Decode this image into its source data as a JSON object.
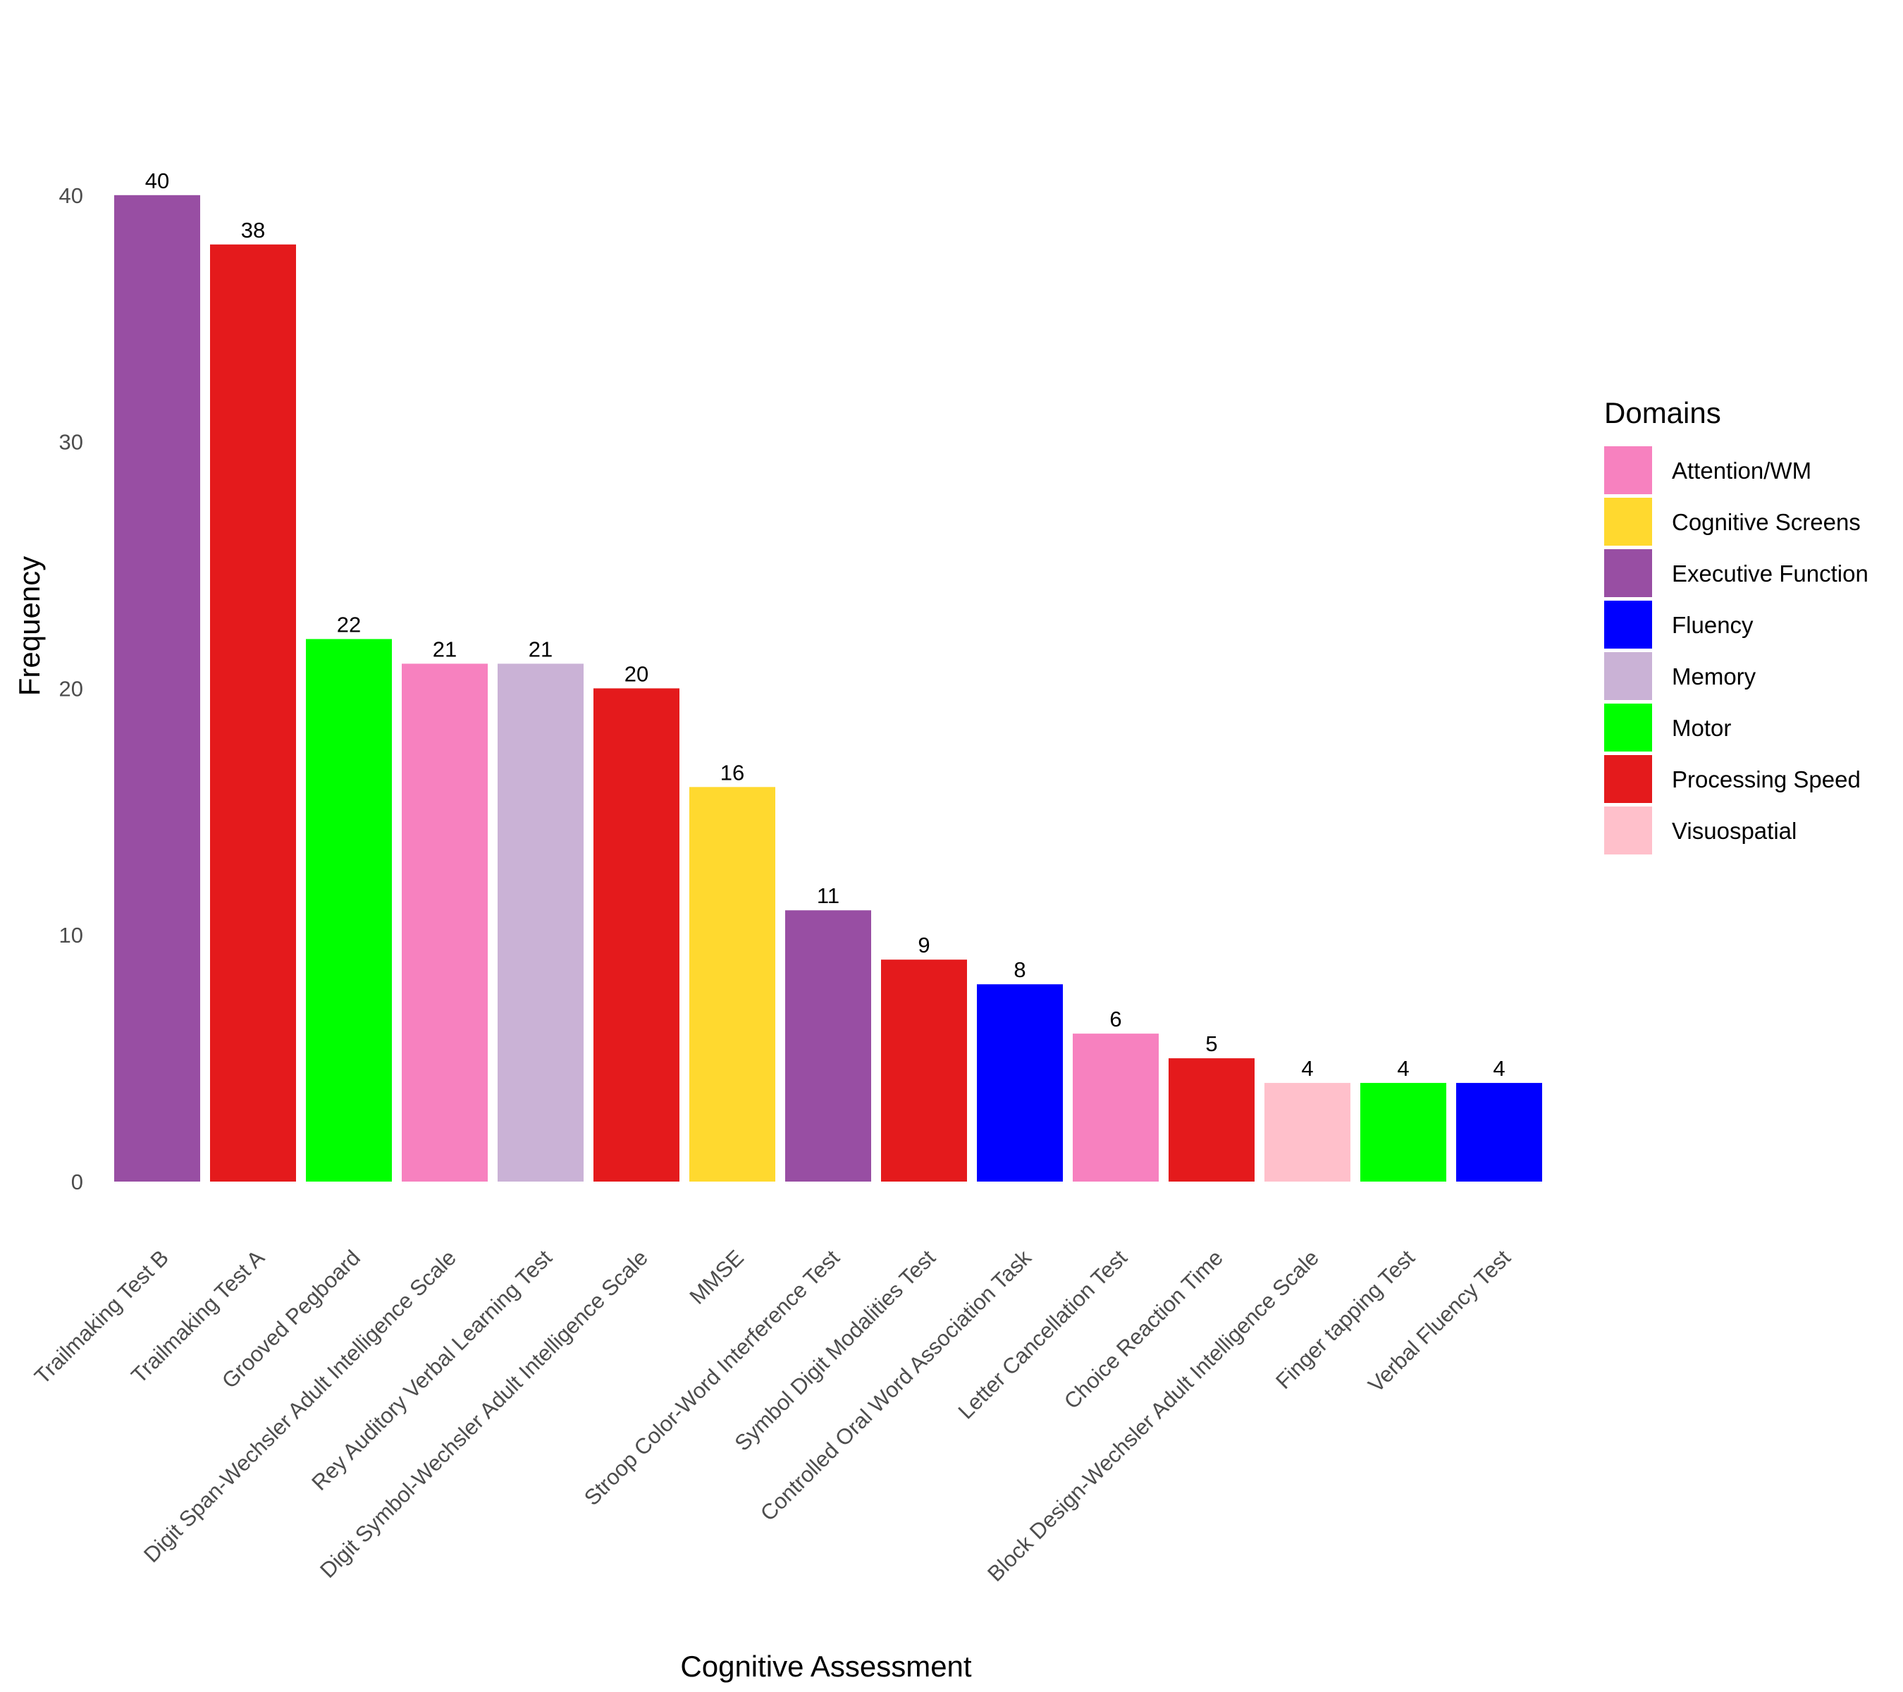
{
  "chart_data": {
    "type": "bar",
    "title": "",
    "xlabel": "Cognitive Assessment",
    "ylabel": "Frequency",
    "ylim": [
      0,
      42
    ],
    "yticks": [
      0,
      10,
      20,
      30,
      40
    ],
    "grid": false,
    "legend_position": "right",
    "legend_title": "Domains",
    "categories": [
      "Trailmaking Test B",
      "Trailmaking Test A",
      "Grooved Pegboard",
      "Digit Span-Wechsler Adult Intelligence Scale",
      "Rey Auditory Verbal Learning Test",
      "Digit Symbol-Wechsler Adult Intelligence Scale",
      "MMSE",
      "Stroop Color-Word Interference Test",
      "Symbol Digit Modalities Test",
      "Controlled Oral Word Association Task",
      "Letter Cancellation Test",
      "Choice Reaction Time",
      "Block Design-Wechsler Adult Intelligence Scale",
      "Finger tapping Test",
      "Verbal Fluency Test"
    ],
    "values": [
      40,
      38,
      22,
      21,
      21,
      20,
      16,
      11,
      9,
      8,
      6,
      5,
      4,
      4,
      4
    ],
    "domains": [
      "Executive Function",
      "Processing Speed",
      "Motor",
      "Attention/WM",
      "Memory",
      "Processing Speed",
      "Cognitive Screens",
      "Executive Function",
      "Processing Speed",
      "Fluency",
      "Attention/WM",
      "Processing Speed",
      "Visuospatial",
      "Motor",
      "Fluency"
    ],
    "legend": [
      {
        "name": "Attention/WM",
        "color": "#F781BF"
      },
      {
        "name": "Cognitive Screens",
        "color": "#FFD92F"
      },
      {
        "name": "Executive Function",
        "color": "#984EA3"
      },
      {
        "name": "Fluency",
        "color": "#0000FF"
      },
      {
        "name": "Memory",
        "color": "#CAB2D6"
      },
      {
        "name": "Motor",
        "color": "#00FF00"
      },
      {
        "name": "Processing Speed",
        "color": "#E41A1C"
      },
      {
        "name": "Visuospatial",
        "color": "#FFC0CB"
      }
    ]
  }
}
